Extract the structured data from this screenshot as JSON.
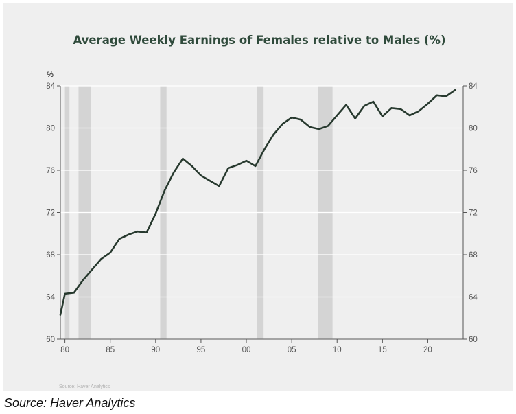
{
  "chart_data": {
    "type": "line",
    "title": "Average Weekly Earnings of Females relative to Males (%)",
    "y_unit_label": "%",
    "xlabel": "",
    "ylabel": "",
    "source_note": "Source:  Haver Analytics",
    "x_range": [
      1979.5,
      2023.9
    ],
    "ylim": [
      60,
      84
    ],
    "y_ticks": [
      60,
      64,
      68,
      72,
      76,
      80,
      84
    ],
    "y_tick_labels": [
      "60",
      "64",
      "68",
      "72",
      "76",
      "80",
      "84"
    ],
    "x_ticks": [
      1980,
      1985,
      1990,
      1995,
      2000,
      2005,
      2010,
      2015,
      2020
    ],
    "x_tick_labels": [
      "80",
      "85",
      "90",
      "95",
      "00",
      "05",
      "10",
      "15",
      "20"
    ],
    "grid": "horizontal",
    "legend": "none",
    "colors": {
      "line": "#27392e",
      "recession": "#d4d4d4",
      "grid": "#ffffff",
      "axis": "#555555"
    },
    "recessions": [
      [
        1980.0,
        1980.5
      ],
      [
        1981.5,
        1982.9
      ],
      [
        1990.5,
        1991.2
      ],
      [
        2001.2,
        2001.9
      ],
      [
        2007.9,
        2009.5
      ]
    ],
    "series": [
      {
        "x": [
          1979,
          1980,
          1981,
          1982,
          1983,
          1984,
          1985,
          1986,
          1987,
          1988,
          1989,
          1990,
          1991,
          1992,
          1993,
          1994,
          1995,
          1996,
          1997,
          1998,
          1999,
          2000,
          2001,
          2002,
          2003,
          2004,
          2005,
          2006,
          2007,
          2008,
          2009,
          2010,
          2011,
          2012,
          2013,
          2014,
          2015,
          2016,
          2017,
          2018,
          2019,
          2020,
          2021,
          2022,
          2023
        ],
        "values": [
          62.3,
          64.3,
          64.4,
          65.6,
          66.6,
          67.6,
          68.2,
          69.5,
          69.9,
          70.2,
          70.1,
          71.9,
          74.1,
          75.8,
          77.1,
          76.4,
          75.5,
          75.0,
          74.5,
          76.2,
          76.5,
          76.9,
          76.4,
          78.0,
          79.4,
          80.4,
          81.0,
          80.8,
          80.1,
          79.9,
          80.2,
          81.2,
          82.2,
          80.9,
          82.1,
          82.5,
          81.1,
          81.9,
          81.8,
          81.2,
          81.6,
          82.3,
          83.1,
          83.0,
          83.6
        ]
      }
    ]
  },
  "footer": {
    "source": "Source: Haver Analytics"
  }
}
